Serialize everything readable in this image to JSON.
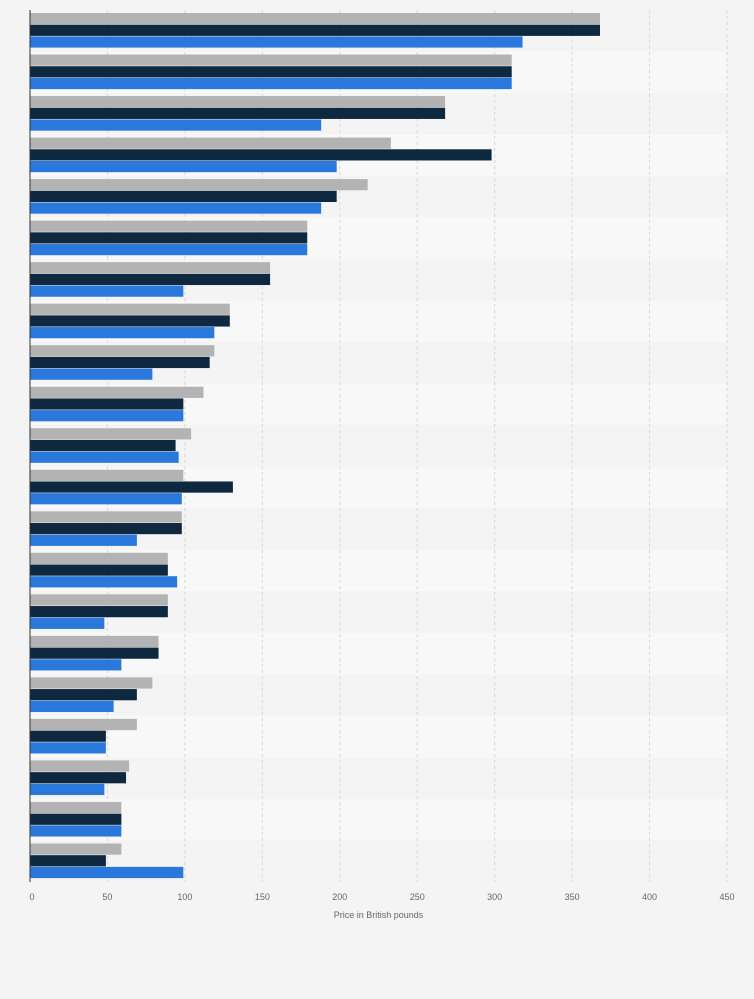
{
  "chart_data": {
    "type": "bar",
    "orientation": "horizontal",
    "xlabel": "Price in British pounds",
    "xlim": [
      0,
      450
    ],
    "xticks": [
      0,
      50,
      100,
      150,
      200,
      250,
      300,
      350,
      400,
      450
    ],
    "grid": true,
    "legend": "none",
    "colors": [
      "#b3b3b3",
      "#0e2840",
      "#2b78dc"
    ],
    "series": [
      {
        "values": [
          368,
          311,
          268,
          233,
          218,
          179,
          155,
          129,
          119,
          112,
          104,
          99,
          98,
          89,
          89,
          83,
          79,
          69,
          64,
          59,
          59
        ]
      },
      {
        "values": [
          368,
          311,
          268,
          298,
          198,
          179,
          155,
          129,
          116,
          99,
          94,
          131,
          98,
          89,
          89,
          83,
          69,
          49,
          62,
          59,
          49
        ]
      },
      {
        "values": [
          318,
          311,
          188,
          198,
          188,
          179,
          99,
          119,
          79,
          99,
          96,
          98,
          69,
          95,
          48,
          59,
          54,
          49,
          48,
          59,
          99
        ]
      }
    ]
  }
}
